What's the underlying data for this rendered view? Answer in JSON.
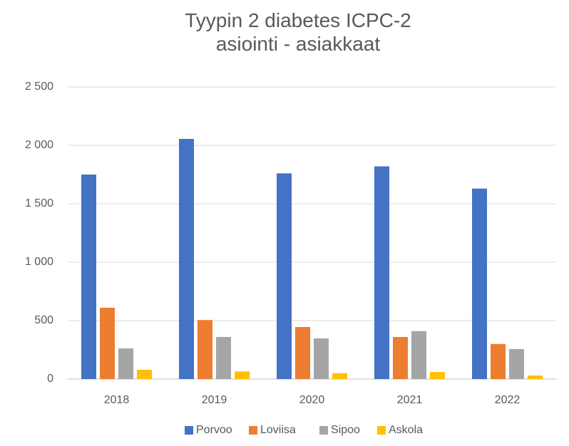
{
  "chart_data": {
    "type": "bar",
    "title": "Tyypin 2 diabetes ICPC-2 asiointi - asiakkaat",
    "categories": [
      "2018",
      "2019",
      "2020",
      "2021",
      "2022"
    ],
    "series": [
      {
        "name": "Porvoo",
        "color": "#4472c4",
        "values": [
          1750,
          2055,
          1760,
          1820,
          1630
        ]
      },
      {
        "name": "Loviisa",
        "color": "#ed7d31",
        "values": [
          610,
          505,
          445,
          360,
          300
        ]
      },
      {
        "name": "Sipoo",
        "color": "#a5a5a5",
        "values": [
          262,
          360,
          348,
          410,
          256
        ]
      },
      {
        "name": "Askola",
        "color": "#ffc000",
        "values": [
          79,
          65,
          50,
          60,
          30
        ]
      }
    ],
    "ylim": [
      0,
      2500
    ],
    "yticks": [
      0,
      500,
      {
        "value": 1000,
        "label": "1 000"
      },
      {
        "value": 1500,
        "label": "1 500"
      },
      {
        "value": 2000,
        "label": "2 000"
      },
      {
        "value": 2500,
        "label": "2 500"
      }
    ],
    "grid": true,
    "legend": "bottom"
  }
}
